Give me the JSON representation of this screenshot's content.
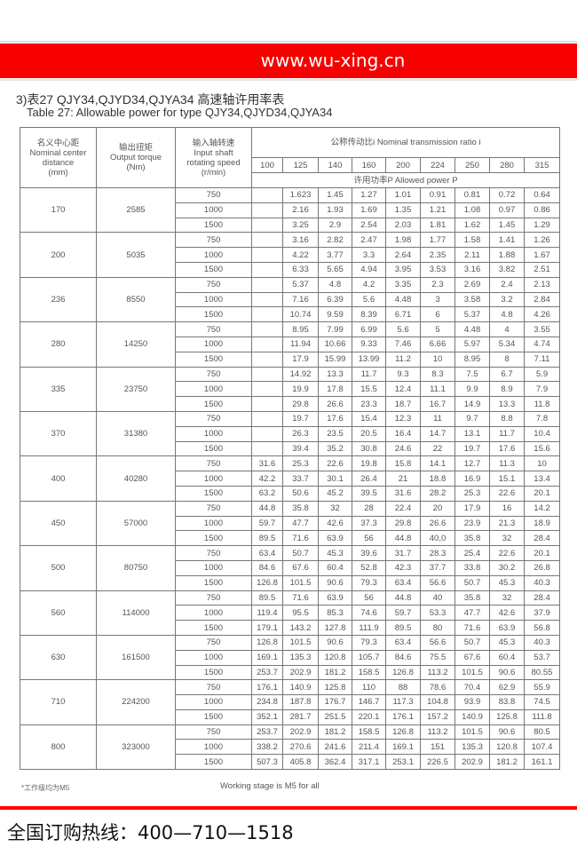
{
  "header": {
    "site": "www.wu-xing.cn",
    "brand_color": "#f80000"
  },
  "title": {
    "cn": "3)表27 QJY34,QJYD34,QJYA34 高速轴许用率表",
    "en": "Table 27: Allowable power for type QJY34,QJYD34,QJYA34"
  },
  "table": {
    "col_distance": "名义中心距\nNominal center\ndistance\n(mm)",
    "col_torque": "输出扭矩\nOutput torque\n(Nm)",
    "col_speed": "输入轴转速\nInput shaft\nrotating speed\n(r/min)",
    "ratio_header": "公称传动比i  Nominal transmission ratio i",
    "ratios": [
      "100",
      "125",
      "140",
      "160",
      "200",
      "224",
      "250",
      "280",
      "315"
    ],
    "power_header": "许用功率P Allowed power P",
    "groups": [
      {
        "distance": "170",
        "torque": "2585",
        "rows": [
          {
            "speed": "750",
            "values": [
              "",
              "1.623",
              "1.45",
              "1.27",
              "1.01",
              "0.91",
              "0.81",
              "0.72",
              "0.64"
            ]
          },
          {
            "speed": "1000",
            "values": [
              "",
              "2.16",
              "1.93",
              "1.69",
              "1.35",
              "1.21",
              "1.08",
              "0.97",
              "0.86"
            ]
          },
          {
            "speed": "1500",
            "values": [
              "",
              "3.25",
              "2.9",
              "2.54",
              "2.03",
              "1.81",
              "1.62",
              "1.45",
              "1.29"
            ]
          }
        ]
      },
      {
        "distance": "200",
        "torque": "5035",
        "rows": [
          {
            "speed": "750",
            "values": [
              "",
              "3.16",
              "2.82",
              "2.47",
              "1.98",
              "1.77",
              "1.58",
              "1.41",
              "1.26"
            ]
          },
          {
            "speed": "1000",
            "values": [
              "",
              "4.22",
              "3.77",
              "3.3",
              "2.64",
              "2.35",
              "2.11",
              "1.88",
              "1.67"
            ]
          },
          {
            "speed": "1500",
            "values": [
              "",
              "6.33",
              "5.65",
              "4.94",
              "3.95",
              "3.53",
              "3.16",
              "3.82",
              "2.51"
            ]
          }
        ]
      },
      {
        "distance": "236",
        "torque": "8550",
        "rows": [
          {
            "speed": "750",
            "values": [
              "",
              "5.37",
              "4.8",
              "4.2",
              "3.35",
              "2.3",
              "2.69",
              "2.4",
              "2.13"
            ]
          },
          {
            "speed": "1000",
            "values": [
              "",
              "7.16",
              "6.39",
              "5.6",
              "4.48",
              "3",
              "3.58",
              "3.2",
              "2.84"
            ]
          },
          {
            "speed": "1500",
            "values": [
              "",
              "10.74",
              "9.59",
              "8.39",
              "6.71",
              "6",
              "5.37",
              "4.8",
              "4.26"
            ]
          }
        ]
      },
      {
        "distance": "280",
        "torque": "14250",
        "rows": [
          {
            "speed": "750",
            "values": [
              "",
              "8.95",
              "7.99",
              "6.99",
              "5.6",
              "5",
              "4.48",
              "4",
              "3.55"
            ]
          },
          {
            "speed": "1000",
            "values": [
              "",
              "11.94",
              "10.66",
              "9.33",
              "7.46",
              "6.66",
              "5.97",
              "5.34",
              "4.74"
            ]
          },
          {
            "speed": "1500",
            "values": [
              "",
              "17.9",
              "15.99",
              "13.99",
              "11.2",
              "10",
              "8.95",
              "8",
              "7.11"
            ]
          }
        ]
      },
      {
        "distance": "335",
        "torque": "23750",
        "rows": [
          {
            "speed": "750",
            "values": [
              "",
              "14.92",
              "13.3",
              "11.7",
              "9.3",
              "8.3",
              "7.5",
              "6.7",
              "5.9"
            ]
          },
          {
            "speed": "1000",
            "values": [
              "",
              "19.9",
              "17.8",
              "15.5",
              "12.4",
              "11.1",
              "9.9",
              "8.9",
              "7.9"
            ]
          },
          {
            "speed": "1500",
            "values": [
              "",
              "29.8",
              "26.6",
              "23.3",
              "18.7",
              "16.7",
              "14.9",
              "13.3",
              "11.8"
            ]
          }
        ]
      },
      {
        "distance": "370",
        "torque": "31380",
        "rows": [
          {
            "speed": "750",
            "values": [
              "",
              "19.7",
              "17.6",
              "15.4",
              "12.3",
              "11",
              "9.7",
              "8.8",
              "7.8"
            ]
          },
          {
            "speed": "1000",
            "values": [
              "",
              "26.3",
              "23.5",
              "20.5",
              "16.4",
              "14.7",
              "13.1",
              "11.7",
              "10.4"
            ]
          },
          {
            "speed": "1500",
            "values": [
              "",
              "39.4",
              "35.2",
              "30.8",
              "24.6",
              "22",
              "19.7",
              "17.6",
              "15.6"
            ]
          }
        ]
      },
      {
        "distance": "400",
        "torque": "40280",
        "rows": [
          {
            "speed": "750",
            "values": [
              "31.6",
              "25.3",
              "22.6",
              "19.8",
              "15.8",
              "14.1",
              "12.7",
              "11.3",
              "10"
            ]
          },
          {
            "speed": "1000",
            "values": [
              "42.2",
              "33.7",
              "30.1",
              "26.4",
              "21",
              "18.8",
              "16.9",
              "15.1",
              "13.4"
            ]
          },
          {
            "speed": "1500",
            "values": [
              "63.2",
              "50.6",
              "45.2",
              "39.5",
              "31.6",
              "28.2",
              "25.3",
              "22.6",
              "20.1"
            ]
          }
        ]
      },
      {
        "distance": "450",
        "torque": "57000",
        "rows": [
          {
            "speed": "750",
            "values": [
              "44.8",
              "35.8",
              "32",
              "28",
              "22.4",
              "20",
              "17.9",
              "16",
              "14.2"
            ]
          },
          {
            "speed": "1000",
            "values": [
              "59.7",
              "47.7",
              "42.6",
              "37.3",
              "29.8",
              "26.6",
              "23.9",
              "21.3",
              "18.9"
            ]
          },
          {
            "speed": "1500",
            "values": [
              "89.5",
              "71.6",
              "63.9",
              "56",
              "44.8",
              "40,0",
              "35.8",
              "32",
              "28.4"
            ]
          }
        ]
      },
      {
        "distance": "500",
        "torque": "80750",
        "rows": [
          {
            "speed": "750",
            "values": [
              "63.4",
              "50.7",
              "45.3",
              "39.6",
              "31.7",
              "28.3",
              "25.4",
              "22.6",
              "20.1"
            ]
          },
          {
            "speed": "1000",
            "values": [
              "84.6",
              "67.6",
              "60.4",
              "52.8",
              "42.3",
              "37.7",
              "33.8",
              "30.2",
              "26.8"
            ]
          },
          {
            "speed": "1500",
            "values": [
              "126.8",
              "101.5",
              "90.6",
              "79.3",
              "63.4",
              "56.6",
              "50.7",
              "45.3",
              "40.3"
            ]
          }
        ]
      },
      {
        "distance": "560",
        "torque": "114000",
        "rows": [
          {
            "speed": "750",
            "values": [
              "89.5",
              "71.6",
              "63.9",
              "56",
              "44.8",
              "40",
              "35.8",
              "32",
              "28.4"
            ]
          },
          {
            "speed": "1000",
            "values": [
              "119.4",
              "95.5",
              "85.3",
              "74.6",
              "59.7",
              "53.3",
              "47.7",
              "42.6",
              "37.9"
            ]
          },
          {
            "speed": "1500",
            "values": [
              "179.1",
              "143.2",
              "127.8",
              "111.9",
              "89.5",
              "80",
              "71.6",
              "63.9",
              "56.8"
            ]
          }
        ]
      },
      {
        "distance": "630",
        "torque": "161500",
        "rows": [
          {
            "speed": "750",
            "values": [
              "126.8",
              "101.5",
              "90.6",
              "79.3",
              "63.4",
              "56.6",
              "50.7",
              "45.3",
              "40.3"
            ]
          },
          {
            "speed": "1000",
            "values": [
              "169.1",
              "135.3",
              "120.8",
              "105.7",
              "84.6",
              "75.5",
              "67.6",
              "60.4",
              "53.7"
            ]
          },
          {
            "speed": "1500",
            "values": [
              "253.7",
              "202.9",
              "181.2",
              "158.5",
              "126.8",
              "113.2",
              "101.5",
              "90.6",
              "80.55"
            ]
          }
        ]
      },
      {
        "distance": "710",
        "torque": "224200",
        "rows": [
          {
            "speed": "750",
            "values": [
              "176.1",
              "140.9",
              "125.8",
              "110",
              "88",
              "78.6",
              "70.4",
              "62.9",
              "55.9"
            ]
          },
          {
            "speed": "1000",
            "values": [
              "234.8",
              "187.8",
              "176.7",
              "146.7",
              "117.3",
              "104.8",
              "93.9",
              "83.8",
              "74.5"
            ]
          },
          {
            "speed": "1500",
            "values": [
              "352.1",
              "281.7",
              "251.5",
              "220.1",
              "176.1",
              "157.2",
              "140.9",
              "125.8",
              "111.8"
            ]
          }
        ]
      },
      {
        "distance": "800",
        "torque": "323000",
        "rows": [
          {
            "speed": "750",
            "values": [
              "253.7",
              "202.9",
              "181.2",
              "158.5",
              "126.8",
              "113.2",
              "101.5",
              "90.6",
              "80.5"
            ]
          },
          {
            "speed": "1000",
            "values": [
              "338.2",
              "270.6",
              "241.6",
              "211.4",
              "169.1",
              "151",
              "135.3",
              "120.8",
              "107.4"
            ]
          },
          {
            "speed": "1500",
            "values": [
              "507.3",
              "405.8",
              "362.4",
              "317.1",
              "253.1",
              "226.5",
              "202.9",
              "181.2",
              "161.1"
            ]
          }
        ]
      }
    ]
  },
  "footer": {
    "note_cn": "*工作级均为M5",
    "note_en": "Working stage is M5 for all",
    "hotline": "全国订购热线：400—710—1518"
  }
}
